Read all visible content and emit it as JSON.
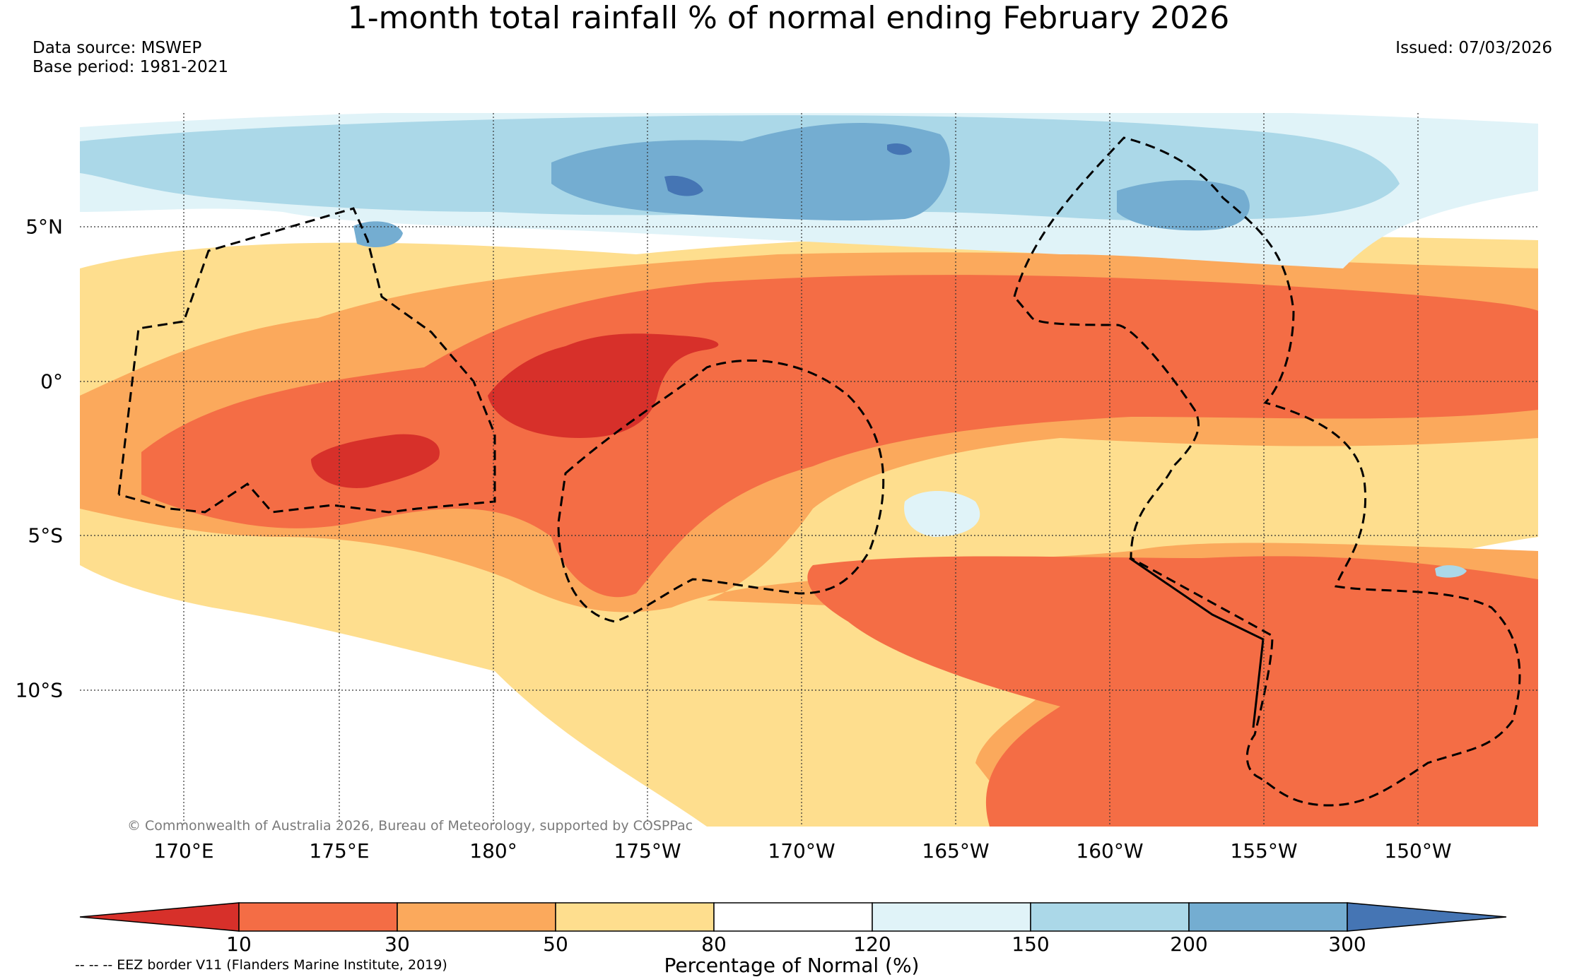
{
  "title": "1-month total rainfall % of normal ending February 2026",
  "data_source": "Data source: MSWEP",
  "base_period": "Base period: 1981-2021",
  "issued": "Issued: 07/03/2026",
  "copyright": "© Commonwealth of Australia 2026, Bureau of Meteorology, supported by COSPPac",
  "map": {
    "lon_labels": [
      "170°E",
      "175°E",
      "180°",
      "175°W",
      "170°W",
      "165°W",
      "160°W",
      "155°W",
      "150°W"
    ],
    "lat_labels": [
      "5°N",
      "0°",
      "5°S",
      "10°S"
    ]
  },
  "colorbar": {
    "title": "Percentage of Normal (%)",
    "tick_labels": [
      "10",
      "30",
      "50",
      "80",
      "120",
      "150",
      "200",
      "300"
    ],
    "colors": [
      "#d7302a",
      "#f46d45",
      "#fba95c",
      "#fede8e",
      "#ffffff",
      "#e0f3f8",
      "#abd8e8",
      "#74add1",
      "#4575b4"
    ]
  },
  "eez_note": "-- -- -- EEZ border V11 (Flanders Marine Institute, 2019)"
}
